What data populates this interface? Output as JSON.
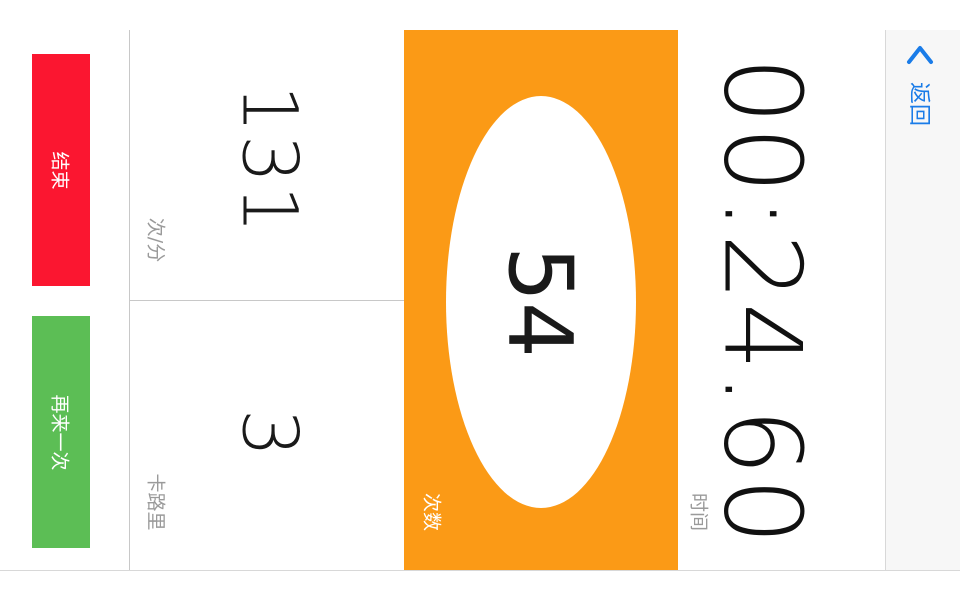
{
  "colors": {
    "end_button": "#fb1630",
    "again_button": "#5cbe55",
    "count_panel": "#fb9a16",
    "back_bar": "#f7f7f7",
    "accent_blue": "#1a7ce8"
  },
  "actions": {
    "end_label": "结束",
    "again_label": "再来一次"
  },
  "stats": {
    "rate_value": "131",
    "rate_unit": "次/分",
    "calories_value": "3",
    "calories_unit": "卡路里"
  },
  "counter": {
    "value": "54",
    "label": "次数"
  },
  "timer": {
    "value": "00:24.60",
    "label": "时间"
  },
  "nav": {
    "back_label": "返回",
    "back_icon": "chevron-left-icon"
  }
}
